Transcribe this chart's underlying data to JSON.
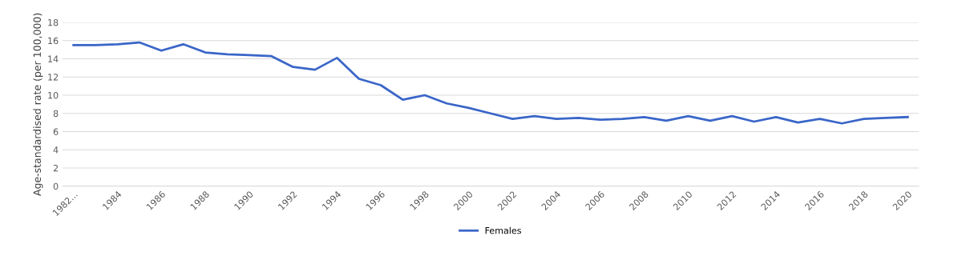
{
  "chart_data": {
    "type": "line",
    "ylabel": "Age-standardised rate (per 100,000)",
    "categories": [
      "1982...",
      null,
      "1984",
      null,
      "1986",
      null,
      "1988",
      null,
      "1990",
      null,
      "1992",
      null,
      "1994",
      null,
      "1996",
      null,
      "1998",
      null,
      "2000",
      null,
      "2002",
      null,
      "2004",
      null,
      "2006",
      null,
      "2008",
      null,
      "2010",
      null,
      "2012",
      null,
      "2014",
      null,
      "2016",
      null,
      "2018",
      null,
      "2020"
    ],
    "series": [
      {
        "name": "Females",
        "color": "#3a66c8",
        "values": [
          15.5,
          15.5,
          15.6,
          15.8,
          14.9,
          15.6,
          14.7,
          14.5,
          14.4,
          14.3,
          13.1,
          12.8,
          14.1,
          11.8,
          11.1,
          9.5,
          10.0,
          9.1,
          8.6,
          8.0,
          7.4,
          7.7,
          7.4,
          7.5,
          7.3,
          7.4,
          7.6,
          7.2,
          7.7,
          7.2,
          7.7,
          7.1,
          7.6,
          7.0,
          7.4,
          6.9,
          7.4,
          7.5,
          7.6
        ]
      }
    ],
    "ylim": [
      0,
      18
    ],
    "yticks": [
      0,
      2,
      4,
      6,
      8,
      10,
      12,
      14,
      16,
      18
    ],
    "grid": "y",
    "legend": "bottom",
    "marker": "none",
    "line_style": "solid"
  }
}
